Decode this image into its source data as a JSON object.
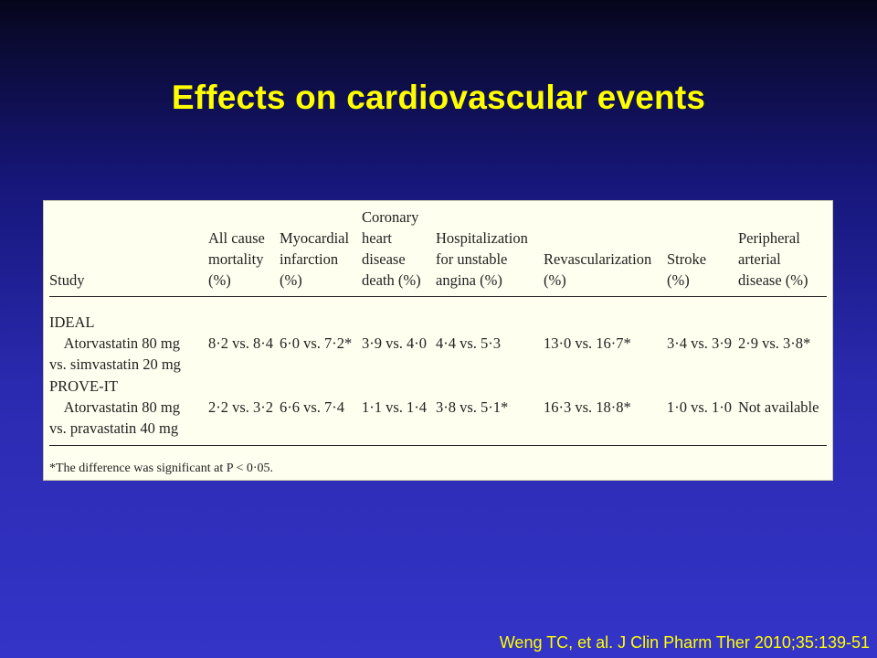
{
  "slide": {
    "title": "Effects on cardiovascular events",
    "citation": "Weng TC, et al. J Clin Pharm Ther 2010;35:139-51"
  },
  "table": {
    "headers": {
      "study": "Study",
      "all_cause": "All cause\nmortality\n(%)",
      "mi": "Myocardial\ninfarction\n(%)",
      "chd": "Coronary\nheart\ndisease\ndeath (%)",
      "hosp": "Hospitalization\nfor unstable\nangina (%)",
      "revasc": "Revascularization\n(%)",
      "stroke": "Stroke\n(%)",
      "pad": "Peripheral\narterial\ndisease (%)"
    },
    "rows": [
      {
        "group": "IDEAL",
        "comparison": "Atorvastatin 80 mg\nvs. simvastatin 20 mg",
        "all_cause": "8·2 vs. 8·4",
        "mi": "6·0 vs. 7·2*",
        "chd": "3·9 vs. 4·0",
        "hosp": "4·4 vs. 5·3",
        "revasc": "13·0 vs. 16·7*",
        "stroke": "3·4 vs. 3·9",
        "pad": "2·9 vs. 3·8*"
      },
      {
        "group": "PROVE-IT",
        "comparison": "Atorvastatin 80 mg\nvs. pravastatin 40 mg",
        "all_cause": "2·2 vs. 3·2",
        "mi": "6·6 vs. 7·4",
        "chd": "1·1 vs. 1·4",
        "hosp": "3·8 vs. 5·1*",
        "revasc": "16·3 vs. 18·8*",
        "stroke": "1·0 vs. 1·0",
        "pad": "Not available"
      }
    ],
    "footnote": "*The difference was significant at P < 0·05."
  }
}
